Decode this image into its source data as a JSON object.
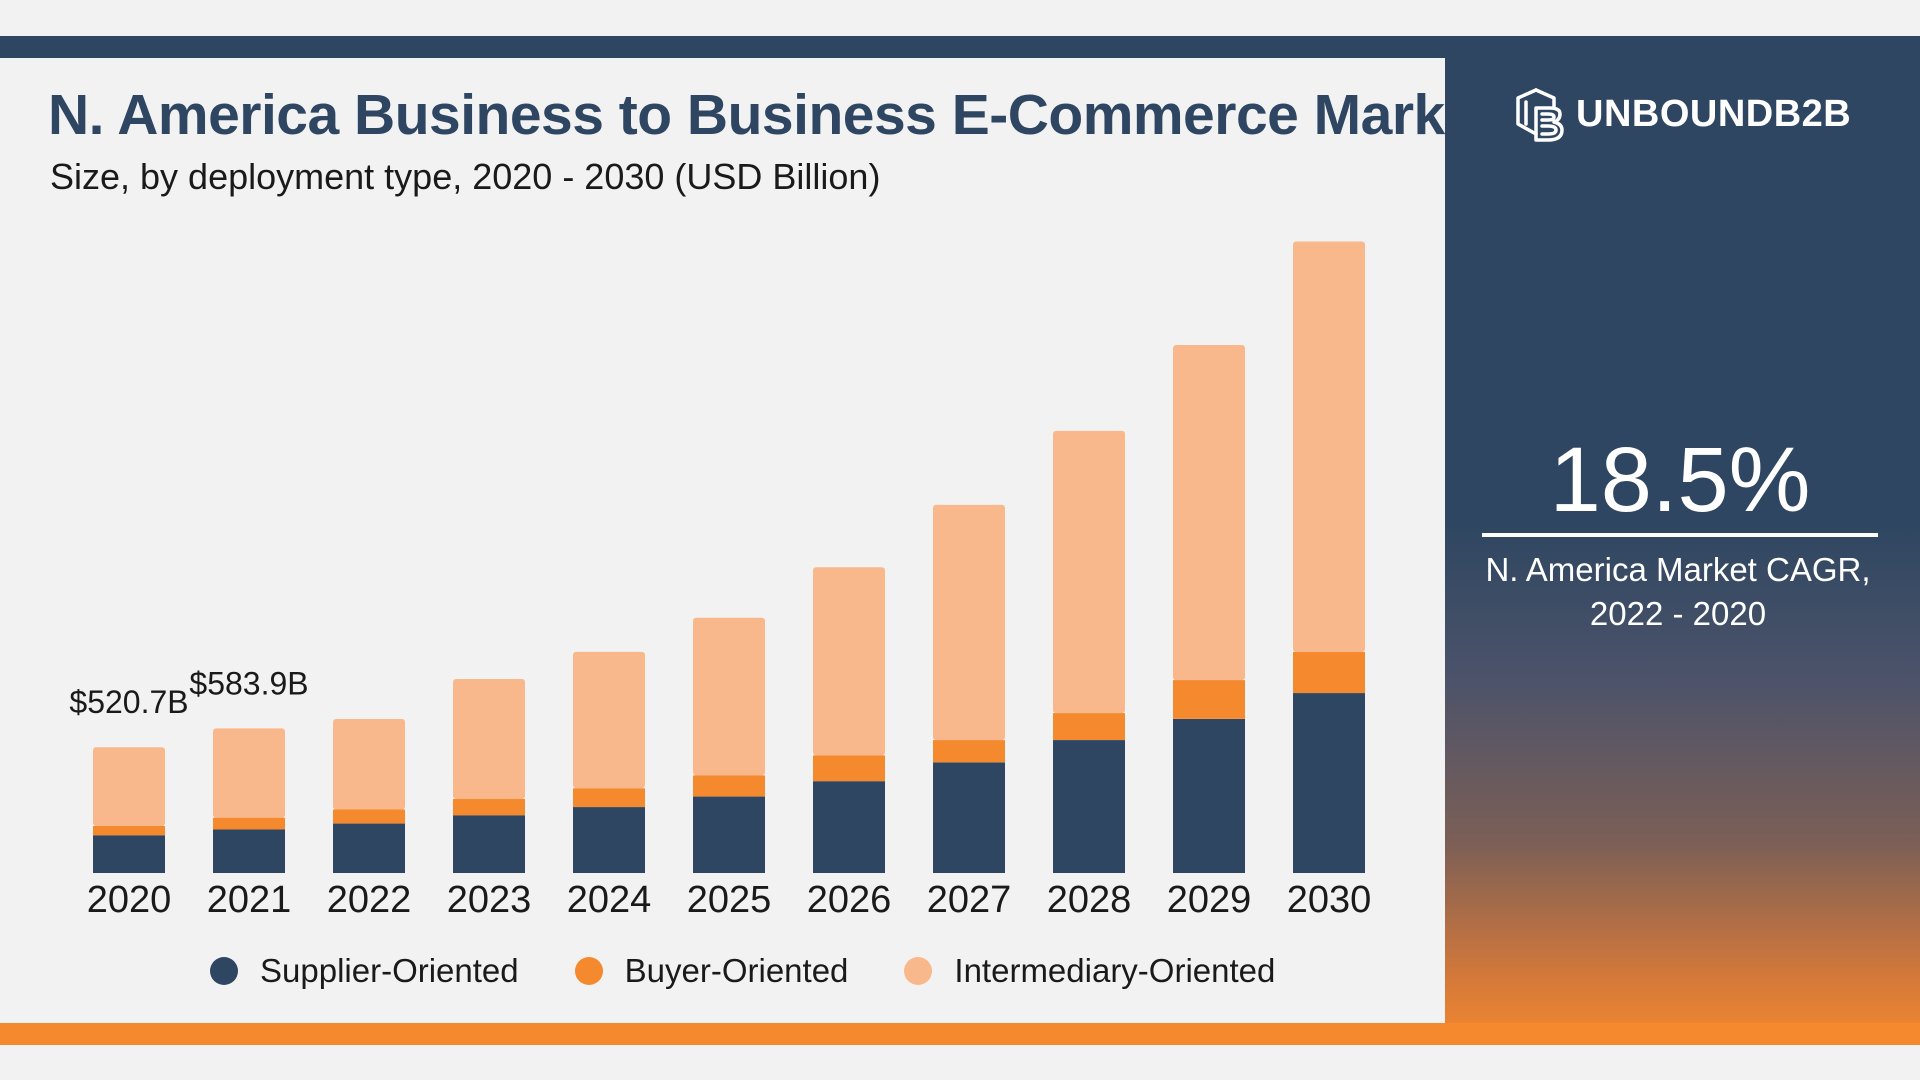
{
  "header": {
    "title": "N. America Business to Business E-Commerce Market",
    "subtitle": "Size, by deployment type, 2020 - 2030 (USD Billion)"
  },
  "brand": {
    "name": "UNBOUNDB2B",
    "icon": "cube-b-logo-icon"
  },
  "cagr": {
    "value": "18.5%",
    "label_line1": "N. America Market CAGR,",
    "label_line2": "2022 - 2020"
  },
  "colors": {
    "supplier": "#2e4661",
    "buyer": "#f5892e",
    "intermediary": "#f9b88b",
    "navy": "#2e4661",
    "orange": "#f5892e"
  },
  "chart_data": {
    "type": "bar",
    "stacked": true,
    "categories": [
      "2020",
      "2021",
      "2022",
      "2023",
      "2024",
      "2025",
      "2026",
      "2027",
      "2028",
      "2029",
      "2030"
    ],
    "series": [
      {
        "name": "Supplier-Oriented",
        "values": [
          32,
          37,
          42,
          49,
          56,
          65,
          78,
          94,
          113,
          131,
          153
        ]
      },
      {
        "name": "Buyer-Oriented",
        "values": [
          8,
          10,
          12,
          14,
          16,
          18,
          22,
          19,
          23,
          33,
          35
        ]
      },
      {
        "name": "Intermediary-Oriented",
        "values": [
          67,
          76,
          77,
          102,
          116,
          134,
          160,
          200,
          240,
          285,
          349
        ]
      }
    ],
    "annotations": [
      {
        "category": "2020",
        "text": "$520.7B"
      },
      {
        "category": "2021",
        "text": "$583.9B"
      }
    ],
    "ylim": [
      0,
      540
    ],
    "grid": false,
    "legend": "bottom"
  }
}
